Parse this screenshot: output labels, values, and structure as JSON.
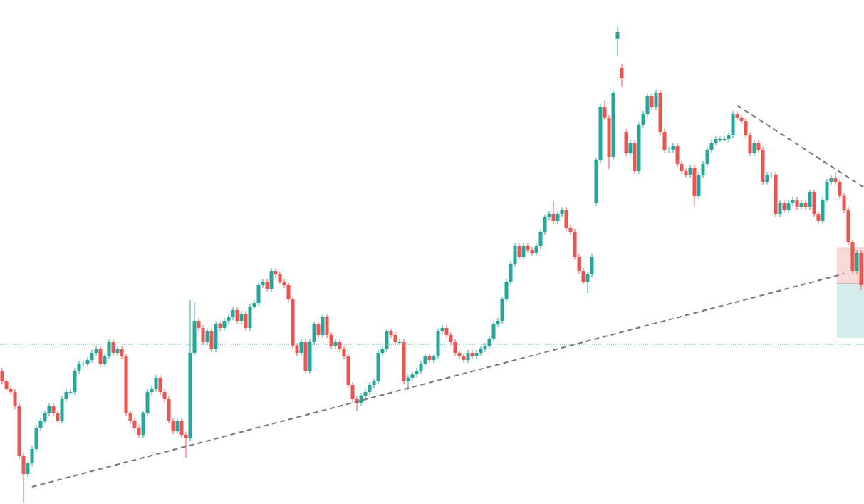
{
  "chart_data": {
    "type": "candlestick",
    "up_color": "#26a69a",
    "down_color": "#ef5350",
    "xlim": [
      -0.5,
      201.67
    ],
    "ylim": [
      0,
      707
    ],
    "candles": [
      [
        187,
        191,
        168,
        172
      ],
      [
        172,
        176,
        158,
        162
      ],
      [
        162,
        166,
        153,
        157
      ],
      [
        157,
        161,
        133,
        137
      ],
      [
        137,
        141,
        63,
        67
      ],
      [
        67,
        71,
        2,
        42
      ],
      [
        42,
        61,
        38,
        57
      ],
      [
        57,
        81,
        53,
        77
      ],
      [
        77,
        111,
        73,
        107
      ],
      [
        107,
        121,
        103,
        117
      ],
      [
        117,
        131,
        113,
        127
      ],
      [
        127,
        141,
        123,
        137
      ],
      [
        137,
        141,
        123,
        127
      ],
      [
        127,
        131,
        113,
        117
      ],
      [
        117,
        151,
        113,
        147
      ],
      [
        147,
        161,
        143,
        157
      ],
      [
        157,
        161,
        153,
        157
      ],
      [
        157,
        191,
        153,
        187
      ],
      [
        187,
        201,
        183,
        197
      ],
      [
        197,
        201,
        193,
        197
      ],
      [
        197,
        206,
        193,
        202
      ],
      [
        202,
        216,
        198,
        212
      ],
      [
        212,
        221,
        208,
        217
      ],
      [
        217,
        221,
        193,
        197
      ],
      [
        197,
        211,
        193,
        207
      ],
      [
        207,
        231,
        203,
        227
      ],
      [
        227,
        231,
        208,
        212
      ],
      [
        212,
        221,
        208,
        217
      ],
      [
        217,
        221,
        203,
        207
      ],
      [
        207,
        211,
        123,
        127
      ],
      [
        127,
        131,
        113,
        117
      ],
      [
        117,
        121,
        103,
        107
      ],
      [
        107,
        111,
        93,
        97
      ],
      [
        97,
        131,
        93,
        127
      ],
      [
        127,
        161,
        123,
        157
      ],
      [
        157,
        166,
        153,
        162
      ],
      [
        162,
        181,
        158,
        177
      ],
      [
        177,
        181,
        153,
        157
      ],
      [
        157,
        161,
        143,
        147
      ],
      [
        147,
        151,
        113,
        117
      ],
      [
        117,
        121,
        98,
        102
      ],
      [
        102,
        121,
        98,
        117
      ],
      [
        117,
        121,
        93,
        97
      ],
      [
        97,
        101,
        65,
        92
      ],
      [
        92,
        286,
        88,
        212
      ],
      [
        212,
        282,
        208,
        257
      ],
      [
        257,
        261,
        243,
        247
      ],
      [
        247,
        251,
        223,
        227
      ],
      [
        227,
        246,
        223,
        242
      ],
      [
        242,
        246,
        213,
        217
      ],
      [
        217,
        256,
        213,
        252
      ],
      [
        252,
        256,
        243,
        247
      ],
      [
        247,
        261,
        243,
        257
      ],
      [
        257,
        266,
        253,
        262
      ],
      [
        262,
        276,
        258,
        272
      ],
      [
        272,
        276,
        253,
        257
      ],
      [
        257,
        271,
        253,
        267
      ],
      [
        267,
        271,
        243,
        247
      ],
      [
        247,
        281,
        243,
        277
      ],
      [
        277,
        286,
        273,
        282
      ],
      [
        282,
        311,
        278,
        307
      ],
      [
        307,
        316,
        303,
        312
      ],
      [
        312,
        316,
        298,
        302
      ],
      [
        302,
        331,
        298,
        327
      ],
      [
        327,
        331,
        318,
        322
      ],
      [
        322,
        326,
        308,
        312
      ],
      [
        312,
        316,
        303,
        307
      ],
      [
        307,
        311,
        283,
        287
      ],
      [
        287,
        291,
        218,
        222
      ],
      [
        222,
        226,
        208,
        212
      ],
      [
        212,
        231,
        208,
        227
      ],
      [
        227,
        231,
        183,
        187
      ],
      [
        187,
        231,
        183,
        227
      ],
      [
        227,
        256,
        223,
        252
      ],
      [
        252,
        256,
        233,
        237
      ],
      [
        237,
        266,
        233,
        262
      ],
      [
        262,
        266,
        233,
        237
      ],
      [
        237,
        241,
        218,
        222
      ],
      [
        222,
        231,
        218,
        227
      ],
      [
        227,
        231,
        213,
        217
      ],
      [
        217,
        221,
        203,
        207
      ],
      [
        207,
        211,
        163,
        167
      ],
      [
        167,
        171,
        143,
        147
      ],
      [
        147,
        151,
        130,
        142
      ],
      [
        142,
        156,
        138,
        152
      ],
      [
        152,
        161,
        148,
        157
      ],
      [
        157,
        171,
        153,
        167
      ],
      [
        167,
        176,
        163,
        172
      ],
      [
        172,
        216,
        168,
        212
      ],
      [
        212,
        221,
        208,
        217
      ],
      [
        217,
        246,
        213,
        242
      ],
      [
        242,
        246,
        233,
        237
      ],
      [
        237,
        241,
        223,
        227
      ],
      [
        227,
        231,
        223,
        227
      ],
      [
        227,
        231,
        168,
        172
      ],
      [
        172,
        181,
        160,
        177
      ],
      [
        177,
        186,
        173,
        182
      ],
      [
        182,
        191,
        178,
        187
      ],
      [
        187,
        201,
        183,
        197
      ],
      [
        197,
        211,
        193,
        207
      ],
      [
        207,
        211,
        198,
        202
      ],
      [
        202,
        211,
        198,
        207
      ],
      [
        207,
        246,
        203,
        242
      ],
      [
        242,
        251,
        238,
        247
      ],
      [
        247,
        251,
        233,
        237
      ],
      [
        237,
        241,
        223,
        227
      ],
      [
        227,
        231,
        208,
        212
      ],
      [
        212,
        216,
        203,
        207
      ],
      [
        207,
        211,
        198,
        202
      ],
      [
        202,
        216,
        198,
        212
      ],
      [
        212,
        216,
        203,
        207
      ],
      [
        207,
        216,
        203,
        212
      ],
      [
        212,
        221,
        208,
        217
      ],
      [
        217,
        226,
        213,
        222
      ],
      [
        222,
        236,
        218,
        232
      ],
      [
        232,
        256,
        228,
        252
      ],
      [
        252,
        261,
        248,
        257
      ],
      [
        257,
        291,
        253,
        287
      ],
      [
        287,
        316,
        283,
        312
      ],
      [
        312,
        341,
        308,
        337
      ],
      [
        337,
        366,
        333,
        362
      ],
      [
        362,
        366,
        343,
        347
      ],
      [
        347,
        366,
        343,
        362
      ],
      [
        362,
        366,
        353,
        357
      ],
      [
        357,
        361,
        348,
        352
      ],
      [
        352,
        366,
        348,
        362
      ],
      [
        362,
        386,
        358,
        382
      ],
      [
        382,
        406,
        378,
        402
      ],
      [
        402,
        411,
        398,
        407
      ],
      [
        407,
        425,
        393,
        397
      ],
      [
        397,
        411,
        393,
        407
      ],
      [
        407,
        416,
        403,
        412
      ],
      [
        412,
        416,
        383,
        387
      ],
      [
        387,
        391,
        378,
        382
      ],
      [
        382,
        386,
        343,
        347
      ],
      [
        347,
        351,
        323,
        327
      ],
      [
        327,
        331,
        308,
        312
      ],
      [
        312,
        326,
        296,
        322
      ],
      [
        322,
        351,
        318,
        347
      ],
      [
        422,
        486,
        418,
        482
      ],
      [
        482,
        561,
        478,
        557
      ],
      [
        557,
        566,
        538,
        542
      ],
      [
        542,
        546,
        470,
        487
      ],
      [
        487,
        581,
        483,
        577
      ],
      [
        652,
        670,
        628,
        662
      ],
      [
        612,
        617,
        585,
        597
      ],
      [
        522,
        526,
        488,
        492
      ],
      [
        492,
        511,
        488,
        507
      ],
      [
        507,
        511,
        463,
        467
      ],
      [
        467,
        536,
        463,
        532
      ],
      [
        532,
        551,
        528,
        547
      ],
      [
        547,
        576,
        543,
        572
      ],
      [
        572,
        576,
        553,
        557
      ],
      [
        557,
        581,
        553,
        577
      ],
      [
        577,
        581,
        518,
        522
      ],
      [
        522,
        526,
        493,
        497
      ],
      [
        497,
        501,
        493,
        497
      ],
      [
        497,
        506,
        493,
        502
      ],
      [
        502,
        506,
        473,
        477
      ],
      [
        477,
        481,
        463,
        467
      ],
      [
        467,
        471,
        458,
        462
      ],
      [
        462,
        476,
        458,
        472
      ],
      [
        472,
        476,
        418,
        432
      ],
      [
        432,
        466,
        428,
        462
      ],
      [
        462,
        481,
        458,
        477
      ],
      [
        477,
        501,
        473,
        497
      ],
      [
        497,
        511,
        493,
        507
      ],
      [
        507,
        516,
        503,
        512
      ],
      [
        512,
        516,
        508,
        512
      ],
      [
        512,
        516,
        508,
        512
      ],
      [
        512,
        521,
        508,
        517
      ],
      [
        517,
        551,
        513,
        547
      ],
      [
        547,
        551,
        538,
        542
      ],
      [
        542,
        546,
        533,
        537
      ],
      [
        537,
        541,
        513,
        517
      ],
      [
        517,
        521,
        488,
        492
      ],
      [
        492,
        511,
        488,
        507
      ],
      [
        507,
        511,
        493,
        497
      ],
      [
        497,
        501,
        448,
        452
      ],
      [
        452,
        466,
        448,
        462
      ],
      [
        462,
        466,
        458,
        462
      ],
      [
        462,
        466,
        403,
        407
      ],
      [
        407,
        426,
        403,
        422
      ],
      [
        422,
        426,
        408,
        412
      ],
      [
        412,
        426,
        408,
        422
      ],
      [
        422,
        431,
        418,
        427
      ],
      [
        427,
        431,
        413,
        417
      ],
      [
        417,
        426,
        413,
        422
      ],
      [
        422,
        426,
        413,
        417
      ],
      [
        417,
        441,
        413,
        437
      ],
      [
        437,
        441,
        403,
        407
      ],
      [
        407,
        411,
        393,
        397
      ],
      [
        397,
        431,
        393,
        427
      ],
      [
        427,
        456,
        423,
        452
      ],
      [
        452,
        461,
        448,
        457
      ],
      [
        457,
        466,
        448,
        452
      ],
      [
        452,
        456,
        428,
        432
      ],
      [
        432,
        436,
        408,
        412
      ],
      [
        412,
        416,
        363,
        367
      ],
      [
        367,
        371,
        323,
        327
      ],
      [
        327,
        356,
        323,
        352
      ],
      [
        352,
        356,
        300,
        307
      ]
    ],
    "trend_lines": [
      {
        "x": [
          7,
          197
        ],
        "y": [
          24,
          323
        ],
        "color": "#757575"
      },
      {
        "x": [
          172,
          201.67
        ],
        "y": [
          559,
          444
        ],
        "color": "#757575"
      }
    ],
    "hline": {
      "value": 224,
      "color": "#26a69a"
    },
    "position": {
      "x": [
        195.3,
        201.67
      ],
      "stop": 360,
      "entry": 309,
      "target": 233,
      "stop_color": "#fbd9d8",
      "target_color": "#d6eeeb"
    }
  }
}
